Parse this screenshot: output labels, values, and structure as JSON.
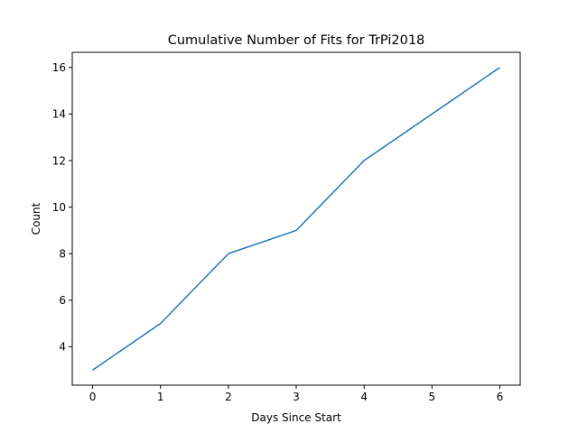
{
  "chart_data": {
    "type": "line",
    "title": "Cumulative Number of Fits for TrPi2018",
    "xlabel": "Days Since Start",
    "ylabel": "Count",
    "x": [
      0,
      1,
      2,
      3,
      4,
      5,
      6
    ],
    "series": [
      {
        "values": [
          3,
          5,
          8,
          9,
          12,
          14,
          16
        ],
        "color": "#1f77b4"
      }
    ],
    "xlim": [
      -0.3,
      6.3
    ],
    "ylim": [
      2.35,
      16.65
    ],
    "xticks": [
      0,
      1,
      2,
      3,
      4,
      5,
      6
    ],
    "yticks": [
      4,
      6,
      8,
      10,
      12,
      14,
      16
    ],
    "grid": false,
    "legend": "none"
  }
}
